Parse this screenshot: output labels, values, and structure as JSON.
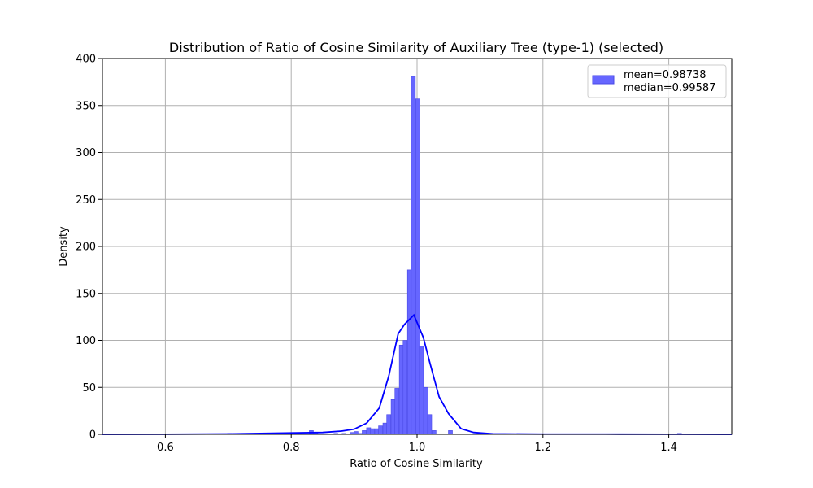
{
  "chart_data": {
    "type": "bar",
    "title": "Distribution of Ratio of Cosine Similarity of Auxiliary Tree (type-1) (selected)",
    "xlabel": "Ratio of Cosine Similarity",
    "ylabel": "Density",
    "xlim": [
      0.5,
      1.5
    ],
    "ylim": [
      0,
      400
    ],
    "x_ticks": [
      "0.6",
      "0.8",
      "1.0",
      "1.2",
      "1.4"
    ],
    "y_ticks": [
      "0",
      "50",
      "100",
      "150",
      "200",
      "250",
      "300",
      "350",
      "400"
    ],
    "grid": true,
    "legend_position": "top-right",
    "legend": [
      "mean=0.98738",
      "median=0.99587"
    ],
    "bar_color": "#6666ff",
    "bar_edge_color": "#4a4ae6",
    "kde_color": "#0000ff",
    "bin_width": 0.0065,
    "histogram": [
      {
        "x": 0.702,
        "density": 1
      },
      {
        "x": 0.832,
        "density": 4
      },
      {
        "x": 0.839,
        "density": 2
      },
      {
        "x": 0.871,
        "density": 1
      },
      {
        "x": 0.884,
        "density": 1
      },
      {
        "x": 0.897,
        "density": 2
      },
      {
        "x": 0.903,
        "density": 3
      },
      {
        "x": 0.91,
        "density": 1
      },
      {
        "x": 0.916,
        "density": 4
      },
      {
        "x": 0.923,
        "density": 7
      },
      {
        "x": 0.929,
        "density": 6
      },
      {
        "x": 0.936,
        "density": 6
      },
      {
        "x": 0.942,
        "density": 9
      },
      {
        "x": 0.949,
        "density": 12
      },
      {
        "x": 0.955,
        "density": 21
      },
      {
        "x": 0.962,
        "density": 37
      },
      {
        "x": 0.968,
        "density": 49
      },
      {
        "x": 0.975,
        "density": 95
      },
      {
        "x": 0.981,
        "density": 100
      },
      {
        "x": 0.988,
        "density": 175
      },
      {
        "x": 0.994,
        "density": 381
      },
      {
        "x": 1.001,
        "density": 357
      },
      {
        "x": 1.007,
        "density": 94
      },
      {
        "x": 1.014,
        "density": 50
      },
      {
        "x": 1.02,
        "density": 21
      },
      {
        "x": 1.027,
        "density": 4
      },
      {
        "x": 1.053,
        "density": 4
      },
      {
        "x": 1.417,
        "density": 1
      }
    ],
    "kde": {
      "x": [
        0.5,
        0.6,
        0.7,
        0.8,
        0.85,
        0.88,
        0.9,
        0.92,
        0.94,
        0.955,
        0.97,
        0.98,
        0.995,
        1.01,
        1.02,
        1.035,
        1.05,
        1.07,
        1.09,
        1.12,
        1.2,
        1.3,
        1.4,
        1.5
      ],
      "y": [
        0,
        0.1,
        0.4,
        1.5,
        2,
        3.5,
        5.5,
        12,
        28,
        62,
        107,
        117,
        127,
        103,
        77,
        40,
        22,
        6,
        2,
        0.5,
        0.2,
        0.2,
        0.1,
        0
      ]
    }
  }
}
